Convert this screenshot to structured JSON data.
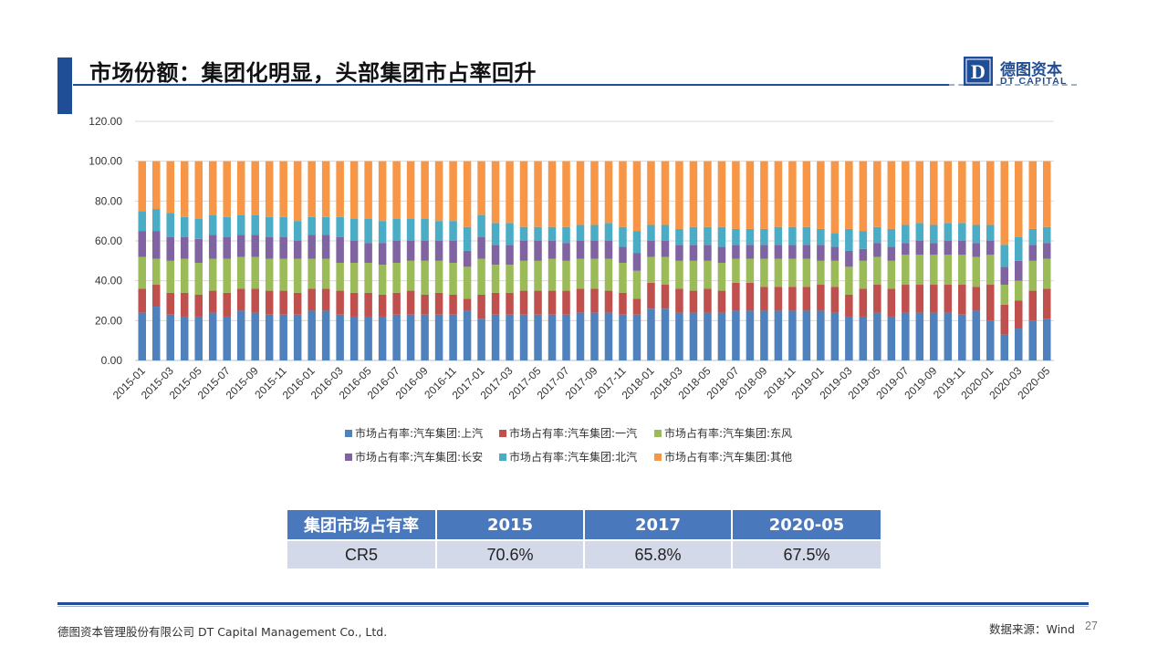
{
  "header": {
    "title": "市场份额：集团化明显，头部集团市占率回升"
  },
  "logo": {
    "mark_letter": "D",
    "cn_name": "德图资本",
    "en_name": "DT CAPITAL"
  },
  "chart_data": {
    "type": "bar",
    "stacked": true,
    "ylim": [
      0,
      120
    ],
    "yticks": [
      "0.00",
      "20.00",
      "40.00",
      "60.00",
      "80.00",
      "100.00",
      "120.00"
    ],
    "grid": true,
    "legend_position": "bottom",
    "x": [
      "2015-01",
      "2015-02",
      "2015-03",
      "2015-04",
      "2015-05",
      "2015-06",
      "2015-07",
      "2015-08",
      "2015-09",
      "2015-10",
      "2015-11",
      "2015-12",
      "2016-01",
      "2016-02",
      "2016-03",
      "2016-04",
      "2016-05",
      "2016-06",
      "2016-07",
      "2016-08",
      "2016-09",
      "2016-10",
      "2016-11",
      "2016-12",
      "2017-01",
      "2017-02",
      "2017-03",
      "2017-04",
      "2017-05",
      "2017-06",
      "2017-07",
      "2017-08",
      "2017-09",
      "2017-10",
      "2017-11",
      "2017-12",
      "2018-01",
      "2018-02",
      "2018-03",
      "2018-04",
      "2018-05",
      "2018-06",
      "2018-07",
      "2018-08",
      "2018-09",
      "2018-10",
      "2018-11",
      "2018-12",
      "2019-01",
      "2019-02",
      "2019-03",
      "2019-04",
      "2019-05",
      "2019-06",
      "2019-07",
      "2019-08",
      "2019-09",
      "2019-10",
      "2019-11",
      "2019-12",
      "2020-01",
      "2020-02",
      "2020-03",
      "2020-04",
      "2020-05"
    ],
    "x_tick_labels": [
      "2015-01",
      "2015-03",
      "2015-05",
      "2015-07",
      "2015-09",
      "2015-11",
      "2016-01",
      "2016-03",
      "2016-05",
      "2016-07",
      "2016-09",
      "2016-11",
      "2017-01",
      "2017-03",
      "2017-05",
      "2017-07",
      "2017-09",
      "2017-11",
      "2018-01",
      "2018-03",
      "2018-05",
      "2018-07",
      "2018-09",
      "2018-11",
      "2019-01",
      "2019-03",
      "2019-05",
      "2019-07",
      "2019-09",
      "2019-11",
      "2020-01",
      "2020-03",
      "2020-05"
    ],
    "series": [
      {
        "name": "市场占有率:汽车集团:上汽",
        "color": "#4f81bd",
        "values": [
          24,
          27,
          23,
          22,
          22,
          24,
          22,
          25,
          24,
          23,
          23,
          23,
          25,
          25,
          23,
          22,
          22,
          22,
          23,
          23,
          23,
          23,
          23,
          25,
          21,
          23,
          23,
          23,
          23,
          23,
          23,
          24,
          24,
          24,
          23,
          23,
          26,
          26,
          24,
          24,
          24,
          24,
          25,
          25,
          25,
          25,
          25,
          25,
          25,
          24,
          22,
          22,
          24,
          22,
          24,
          24,
          24,
          24,
          23,
          25,
          20,
          13,
          16,
          20,
          21
        ]
      },
      {
        "name": "市场占有率:汽车集团:一汽",
        "color": "#c0504d",
        "values": [
          12,
          11,
          11,
          12,
          11,
          11,
          12,
          11,
          12,
          12,
          12,
          11,
          11,
          11,
          12,
          12,
          12,
          11,
          11,
          12,
          10,
          11,
          10,
          6,
          12,
          11,
          11,
          12,
          12,
          12,
          12,
          12,
          12,
          11,
          11,
          8,
          13,
          12,
          12,
          11,
          12,
          11,
          14,
          14,
          12,
          12,
          12,
          12,
          13,
          13,
          11,
          14,
          14,
          14,
          14,
          14,
          14,
          14,
          15,
          12,
          18,
          15,
          14,
          15,
          15
        ]
      },
      {
        "name": "市场占有率:汽车集团:东风",
        "color": "#9bbb59",
        "values": [
          16,
          13,
          16,
          17,
          16,
          16,
          17,
          16,
          16,
          16,
          16,
          17,
          15,
          15,
          14,
          15,
          15,
          15,
          15,
          15,
          17,
          16,
          16,
          16,
          18,
          14,
          14,
          15,
          15,
          16,
          15,
          15,
          15,
          16,
          15,
          14,
          13,
          14,
          14,
          15,
          14,
          14,
          12,
          12,
          14,
          14,
          14,
          14,
          12,
          13,
          14,
          14,
          14,
          14,
          15,
          15,
          15,
          15,
          15,
          15,
          15,
          10,
          10,
          15,
          15
        ]
      },
      {
        "name": "市场占有率:汽车集团:长安",
        "color": "#8064a2",
        "values": [
          13,
          14,
          12,
          11,
          12,
          12,
          11,
          11,
          11,
          11,
          11,
          9,
          12,
          12,
          13,
          11,
          10,
          11,
          11,
          10,
          10,
          10,
          11,
          8,
          11,
          10,
          10,
          10,
          10,
          9,
          9,
          9,
          9,
          9,
          8,
          9,
          8,
          8,
          8,
          8,
          8,
          8,
          7,
          7,
          7,
          7,
          7,
          7,
          8,
          7,
          8,
          6,
          7,
          7,
          6,
          7,
          6,
          7,
          7,
          7,
          7,
          9,
          10,
          8,
          8
        ]
      },
      {
        "name": "市场占有率:汽车集团:北汽",
        "color": "#4bacc6",
        "values": [
          10,
          11,
          12,
          10,
          10,
          10,
          10,
          10,
          10,
          10,
          10,
          10,
          9,
          9,
          10,
          11,
          12,
          11,
          11,
          11,
          11,
          10,
          10,
          12,
          11,
          11,
          11,
          7,
          7,
          7,
          8,
          8,
          8,
          9,
          10,
          11,
          8,
          8,
          8,
          9,
          9,
          10,
          8,
          8,
          8,
          9,
          9,
          9,
          8,
          7,
          11,
          9,
          8,
          9,
          9,
          9,
          9,
          9,
          9,
          9,
          8,
          11,
          12,
          8,
          8
        ]
      },
      {
        "name": "市场占有率:汽车集团:其他",
        "color": "#f79646",
        "values": [
          25,
          24,
          26,
          28,
          29,
          27,
          28,
          27,
          27,
          28,
          28,
          30,
          28,
          28,
          28,
          29,
          29,
          30,
          29,
          29,
          29,
          30,
          30,
          33,
          27,
          31,
          31,
          33,
          33,
          33,
          33,
          32,
          32,
          31,
          33,
          35,
          32,
          32,
          34,
          33,
          33,
          33,
          34,
          34,
          34,
          33,
          33,
          33,
          34,
          36,
          34,
          35,
          33,
          34,
          32,
          31,
          32,
          31,
          31,
          32,
          32,
          42,
          38,
          34,
          33
        ]
      }
    ]
  },
  "table": {
    "headers": [
      "集团市场占有率",
      "2015",
      "2017",
      "2020-05"
    ],
    "rows": [
      [
        "CR5",
        "70.6%",
        "65.8%",
        "67.5%"
      ]
    ]
  },
  "footer": {
    "company": "德图资本管理股份有限公司 DT Capital Management Co., Ltd.",
    "source": "数据来源：Wind",
    "page": "27"
  },
  "colors": {
    "brand": "#1f4e96",
    "table_header": "#4a78bd",
    "table_row": "#d3d9e8"
  }
}
